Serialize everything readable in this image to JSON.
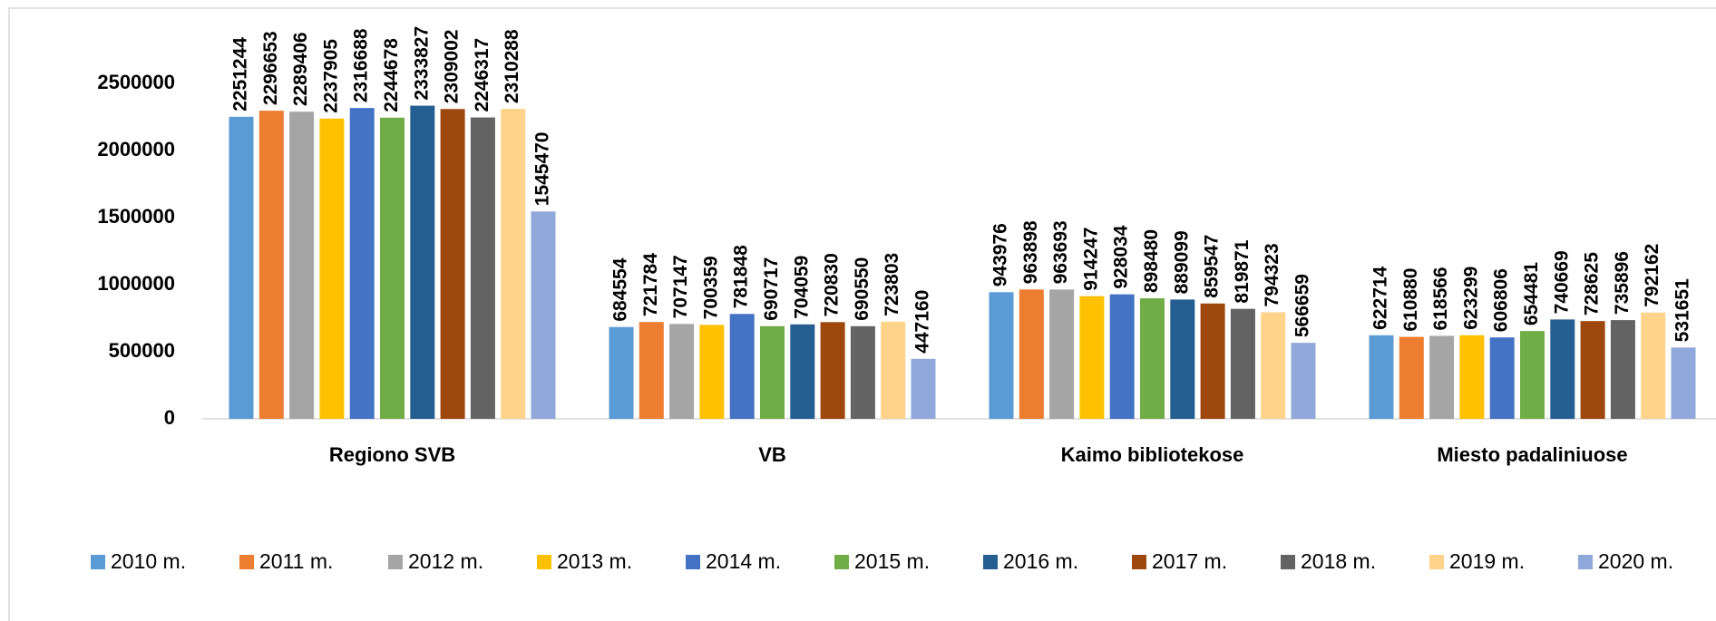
{
  "chart_data": {
    "type": "bar",
    "categories": [
      "Regiono SVB",
      "VB",
      "Kaimo bibliotekose",
      "Miesto padaliniuose"
    ],
    "series": [
      {
        "name": "2010 m.",
        "color": "#5B9BD5",
        "values": [
          2251244,
          684554,
          943976,
          622714
        ]
      },
      {
        "name": "2011 m.",
        "color": "#ED7D31",
        "values": [
          2296653,
          721784,
          963898,
          610880
        ]
      },
      {
        "name": "2012 m.",
        "color": "#A5A5A5",
        "values": [
          2289406,
          707147,
          963693,
          618566
        ]
      },
      {
        "name": "2013 m.",
        "color": "#FFC000",
        "values": [
          2237905,
          700359,
          914247,
          623299
        ]
      },
      {
        "name": "2014 m.",
        "color": "#4472C4",
        "values": [
          2316688,
          781848,
          928034,
          606806
        ]
      },
      {
        "name": "2015 m.",
        "color": "#70AD47",
        "values": [
          2244678,
          690717,
          898480,
          654481
        ]
      },
      {
        "name": "2016 m.",
        "color": "#255E91",
        "values": [
          2333827,
          704059,
          889099,
          740669
        ]
      },
      {
        "name": "2017 m.",
        "color": "#9E480E",
        "values": [
          2309002,
          720830,
          859547,
          728625
        ]
      },
      {
        "name": "2018 m.",
        "color": "#636363",
        "values": [
          2246317,
          690550,
          819871,
          735896
        ]
      },
      {
        "name": "2019 m.",
        "color": "#FFD38A",
        "values": [
          2310288,
          723803,
          794323,
          792162
        ]
      },
      {
        "name": "2020 m.",
        "color": "#91A8DA",
        "values": [
          1545470,
          447160,
          566659,
          531651
        ]
      }
    ],
    "ylim": [
      0,
      2500000
    ],
    "yticks": [
      0,
      500000,
      1000000,
      1500000,
      2000000,
      2500000
    ],
    "grid": false,
    "legend": "bottom"
  }
}
